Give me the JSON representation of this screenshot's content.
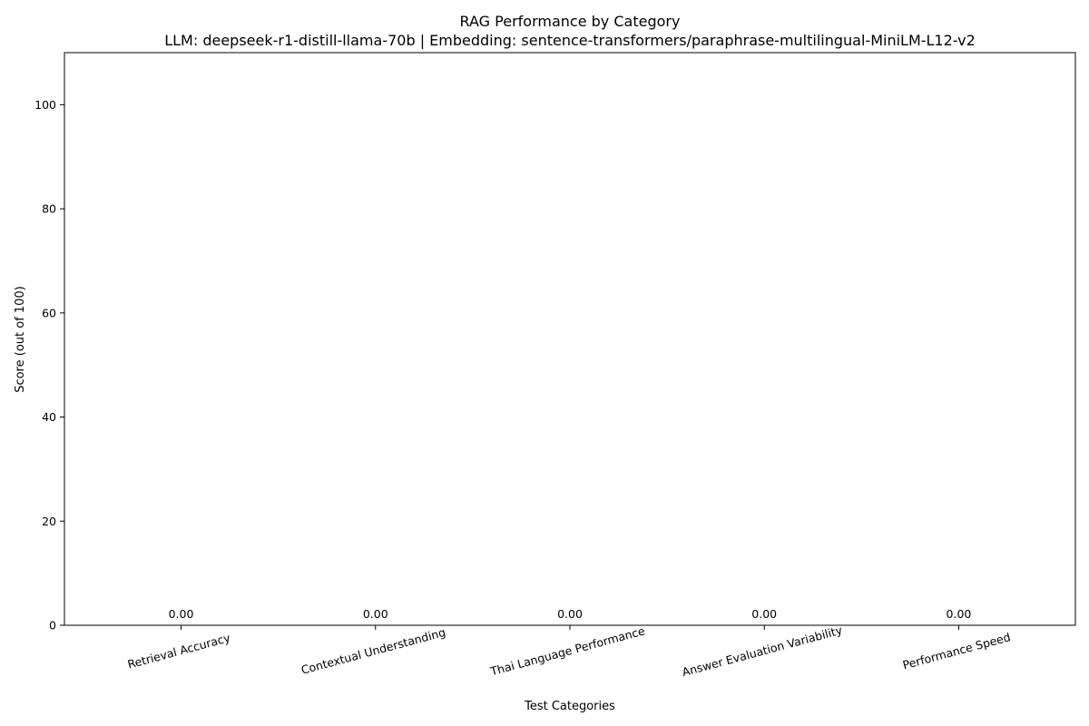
{
  "chart_data": {
    "type": "bar",
    "title": "RAG Performance by Category",
    "subtitle": "LLM: deepseek-r1-distill-llama-70b | Embedding: sentence-transformers/paraphrase-multilingual-MiniLM-L12-v2",
    "xlabel": "Test Categories",
    "ylabel": "Score (out of 100)",
    "categories": [
      "Retrieval Accuracy",
      "Contextual Understanding",
      "Thai Language Performance",
      "Answer Evaluation Variability",
      "Performance Speed"
    ],
    "values": [
      0,
      0,
      0,
      0,
      0
    ],
    "data_labels": [
      "0.00",
      "0.00",
      "0.00",
      "0.00",
      "0.00"
    ],
    "ylim": [
      0,
      110
    ],
    "yticks": [
      0,
      20,
      40,
      60,
      80,
      100
    ],
    "grid": false,
    "x_tick_rotation_deg": 15
  }
}
